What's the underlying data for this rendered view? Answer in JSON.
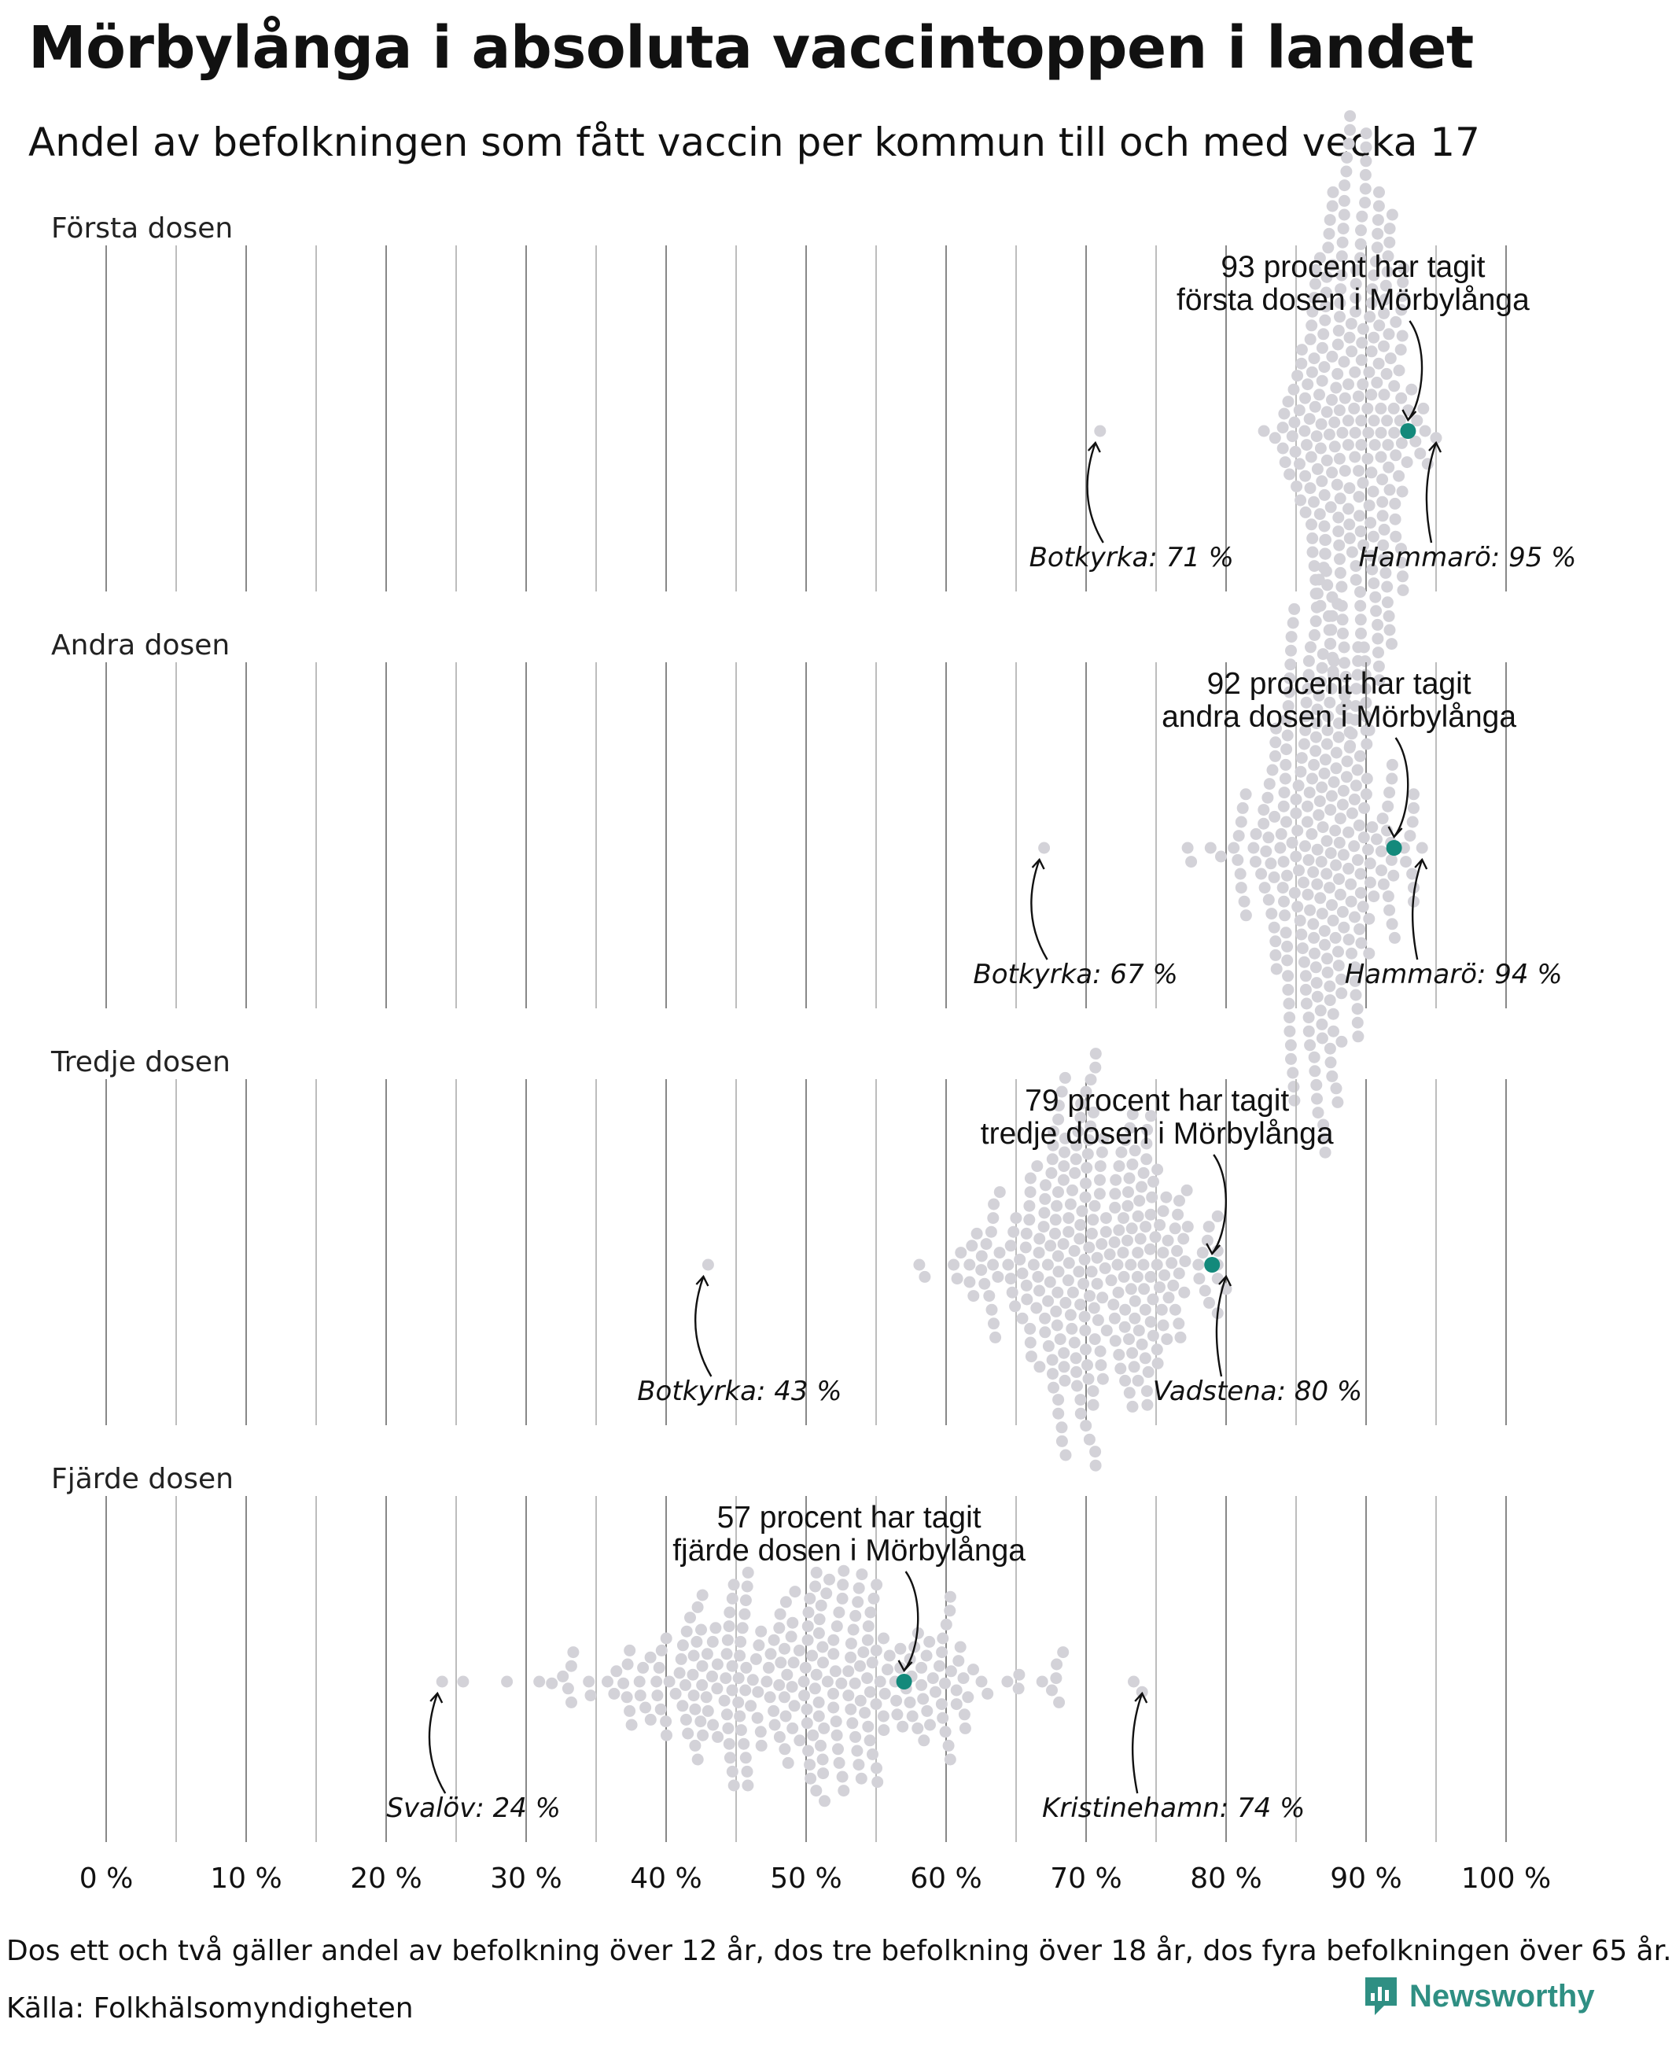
{
  "title": "Mörbylånga i absoluta vaccintoppen i landet",
  "subtitle": "Andel av befolkningen som fått vaccin per kommun till och med vecka 17",
  "footnote": "Dos ett och två gäller andel av befolkning över 12 år, dos tre befolkning över 18 år, dos fyra befolkningen över 65 år.",
  "source": "Källa: Folkhälsomyndigheten",
  "brand": "Newsworthy",
  "colors": {
    "highlight": "#13897b",
    "dots": "#d3d2d8",
    "brand": "#2f8f83"
  },
  "chart_data": {
    "type": "scatter",
    "style": "beeswarm",
    "x_ticks": [
      "0 %",
      "10 %",
      "20 %",
      "30 %",
      "40 %",
      "50 %",
      "60 %",
      "70 %",
      "80 %",
      "90 %",
      "100 %"
    ],
    "xlim": [
      0,
      100
    ],
    "grid": true,
    "panels": [
      {
        "title": "Första dosen",
        "highlight": {
          "value": 93,
          "label_lines": [
            "93 procent har tagit",
            "första dosen i Mörbylånga"
          ]
        },
        "min": {
          "value": 71,
          "label": "Botkyrka: 71 %"
        },
        "max": {
          "value": 95,
          "label": "Hammarö: 95 %"
        },
        "distribution": {
          "mean": 89,
          "sd": 2.4,
          "n": 290
        }
      },
      {
        "title": "Andra dosen",
        "highlight": {
          "value": 92,
          "label_lines": [
            "92 procent har tagit",
            "andra dosen i Mörbylånga"
          ]
        },
        "min": {
          "value": 67,
          "label": "Botkyrka: 67 %"
        },
        "max": {
          "value": 94,
          "label": "Hammarö: 94 %"
        },
        "distribution": {
          "mean": 87,
          "sd": 2.8,
          "n": 290
        }
      },
      {
        "title": "Tredje dosen",
        "highlight": {
          "value": 79,
          "label_lines": [
            "79 procent har tagit",
            "tredje dosen i Mörbylånga"
          ]
        },
        "min": {
          "value": 43,
          "label": "Botkyrka: 43 %"
        },
        "max": {
          "value": 80,
          "label": "Vadstena: 80 %"
        },
        "distribution": {
          "mean": 70,
          "sd": 4.5,
          "n": 290
        }
      },
      {
        "title": "Fjärde dosen",
        "highlight": {
          "value": 57,
          "label_lines": [
            "57 procent har tagit",
            "fjärde dosen i Mörbylånga"
          ]
        },
        "min": {
          "value": 24,
          "label": "Svalöv: 24 %"
        },
        "max": {
          "value": 74,
          "label": "Kristinehamn: 74 %"
        },
        "distribution": {
          "mean": 50,
          "sd": 7.5,
          "n": 290
        }
      }
    ]
  }
}
